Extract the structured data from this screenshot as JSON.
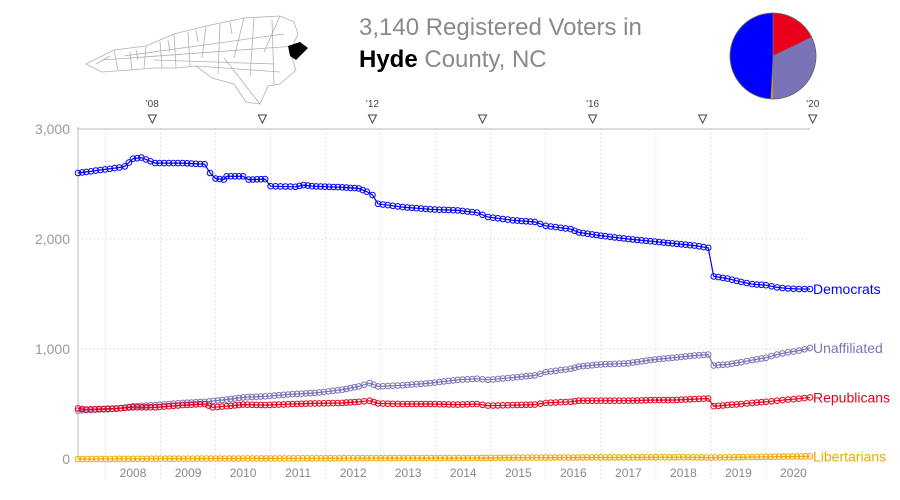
{
  "header": {
    "title_line1": "3,140 Registered Voters in",
    "county": "Hyde",
    "title_line2_rest": " County, NC"
  },
  "map": {
    "icon": "north-carolina-county-map-icon",
    "outline_color": "#b0b0b0",
    "highlight_color": "#000000"
  },
  "colors": {
    "democrats": "#0000ff",
    "unaffiliated": "#7b73b8",
    "republicans": "#e8001c",
    "libertarians": "#f0a800",
    "axis_text": "#999999",
    "grid": "#c8c8c8"
  },
  "chart_data": {
    "type": "line",
    "title": "3,140 Registered Voters in Hyde County, NC",
    "xlim": [
      2007.5,
      2020.8
    ],
    "ylim": [
      0,
      3000
    ],
    "y_ticks": [
      0,
      1000,
      2000,
      3000
    ],
    "y_tick_labels": [
      "0",
      "1,000",
      "2,000",
      "3,000"
    ],
    "x_tick_labels": [
      "2008",
      "2009",
      "2010",
      "2011",
      "2012",
      "2013",
      "2014",
      "2015",
      "2016",
      "2017",
      "2018",
      "2019",
      "2020"
    ],
    "x_tick_positions": [
      2008.5,
      2009.5,
      2010.5,
      2011.5,
      2012.5,
      2013.5,
      2014.5,
      2015.5,
      2016.5,
      2017.5,
      2018.5,
      2019.5,
      2020.5
    ],
    "election_markers": [
      {
        "x": 2008.85,
        "label": "'08"
      },
      {
        "x": 2010.85,
        "label": ""
      },
      {
        "x": 2012.85,
        "label": "'12"
      },
      {
        "x": 2014.85,
        "label": ""
      },
      {
        "x": 2016.85,
        "label": "'16"
      },
      {
        "x": 2018.85,
        "label": ""
      },
      {
        "x": 2020.85,
        "label": "'20"
      }
    ],
    "grid": true,
    "legend": "end-of-line labels",
    "series": [
      {
        "name": "Democrats",
        "color": "#0000ff",
        "points": [
          [
            2007.5,
            2600
          ],
          [
            2007.65,
            2610
          ],
          [
            2008.25,
            2650
          ],
          [
            2008.35,
            2660
          ],
          [
            2008.5,
            2730
          ],
          [
            2008.65,
            2740
          ],
          [
            2008.9,
            2690
          ],
          [
            2009.4,
            2690
          ],
          [
            2009.8,
            2680
          ],
          [
            2009.9,
            2600
          ],
          [
            2010.0,
            2550
          ],
          [
            2010.15,
            2540
          ],
          [
            2010.2,
            2570
          ],
          [
            2010.5,
            2570
          ],
          [
            2010.6,
            2540
          ],
          [
            2010.9,
            2545
          ],
          [
            2011.0,
            2480
          ],
          [
            2011.45,
            2475
          ],
          [
            2011.6,
            2490
          ],
          [
            2011.75,
            2480
          ],
          [
            2012.3,
            2470
          ],
          [
            2012.6,
            2460
          ],
          [
            2012.75,
            2430
          ],
          [
            2012.85,
            2400
          ],
          [
            2012.95,
            2320
          ],
          [
            2013.4,
            2290
          ],
          [
            2013.9,
            2270
          ],
          [
            2014.4,
            2260
          ],
          [
            2014.75,
            2240
          ],
          [
            2014.95,
            2200
          ],
          [
            2015.4,
            2170
          ],
          [
            2015.8,
            2155
          ],
          [
            2016.0,
            2120
          ],
          [
            2016.45,
            2090
          ],
          [
            2016.6,
            2060
          ],
          [
            2017.0,
            2030
          ],
          [
            2017.5,
            2000
          ],
          [
            2017.9,
            1980
          ],
          [
            2018.3,
            1960
          ],
          [
            2018.7,
            1940
          ],
          [
            2018.95,
            1920
          ],
          [
            2019.05,
            1660
          ],
          [
            2019.3,
            1640
          ],
          [
            2019.55,
            1610
          ],
          [
            2019.75,
            1590
          ],
          [
            2020.0,
            1580
          ],
          [
            2020.2,
            1560
          ],
          [
            2020.4,
            1550
          ],
          [
            2020.6,
            1545
          ],
          [
            2020.8,
            1545
          ]
        ]
      },
      {
        "name": "Unaffiliated",
        "color": "#7b73b8",
        "points": [
          [
            2007.5,
            440
          ],
          [
            2007.65,
            445
          ],
          [
            2008.2,
            455
          ],
          [
            2008.5,
            480
          ],
          [
            2008.9,
            490
          ],
          [
            2009.4,
            510
          ],
          [
            2009.8,
            520
          ],
          [
            2010.2,
            540
          ],
          [
            2010.5,
            560
          ],
          [
            2010.9,
            570
          ],
          [
            2011.4,
            590
          ],
          [
            2011.8,
            600
          ],
          [
            2012.3,
            630
          ],
          [
            2012.6,
            660
          ],
          [
            2012.8,
            690
          ],
          [
            2012.95,
            660
          ],
          [
            2013.4,
            670
          ],
          [
            2013.9,
            690
          ],
          [
            2014.4,
            720
          ],
          [
            2014.75,
            730
          ],
          [
            2014.95,
            720
          ],
          [
            2015.4,
            740
          ],
          [
            2015.8,
            760
          ],
          [
            2016.0,
            790
          ],
          [
            2016.45,
            820
          ],
          [
            2016.6,
            840
          ],
          [
            2017.0,
            860
          ],
          [
            2017.5,
            870
          ],
          [
            2017.9,
            900
          ],
          [
            2018.3,
            920
          ],
          [
            2018.7,
            940
          ],
          [
            2018.95,
            950
          ],
          [
            2019.05,
            850
          ],
          [
            2019.3,
            860
          ],
          [
            2019.55,
            880
          ],
          [
            2019.75,
            900
          ],
          [
            2020.0,
            920
          ],
          [
            2020.2,
            950
          ],
          [
            2020.4,
            970
          ],
          [
            2020.6,
            985
          ],
          [
            2020.8,
            1010
          ]
        ]
      },
      {
        "name": "Republicans",
        "color": "#e8001c",
        "points": [
          [
            2007.5,
            460
          ],
          [
            2007.65,
            450
          ],
          [
            2008.2,
            460
          ],
          [
            2008.5,
            470
          ],
          [
            2008.9,
            470
          ],
          [
            2009.4,
            490
          ],
          [
            2009.8,
            500
          ],
          [
            2009.95,
            470
          ],
          [
            2010.2,
            480
          ],
          [
            2010.5,
            495
          ],
          [
            2010.9,
            490
          ],
          [
            2011.4,
            500
          ],
          [
            2011.8,
            505
          ],
          [
            2012.3,
            510
          ],
          [
            2012.6,
            520
          ],
          [
            2012.8,
            530
          ],
          [
            2012.95,
            505
          ],
          [
            2013.4,
            500
          ],
          [
            2013.9,
            500
          ],
          [
            2014.4,
            495
          ],
          [
            2014.75,
            500
          ],
          [
            2014.95,
            485
          ],
          [
            2015.4,
            490
          ],
          [
            2015.8,
            495
          ],
          [
            2016.0,
            510
          ],
          [
            2016.45,
            520
          ],
          [
            2016.6,
            530
          ],
          [
            2017.0,
            530
          ],
          [
            2017.5,
            530
          ],
          [
            2017.9,
            535
          ],
          [
            2018.3,
            535
          ],
          [
            2018.7,
            545
          ],
          [
            2018.95,
            550
          ],
          [
            2019.05,
            480
          ],
          [
            2019.3,
            490
          ],
          [
            2019.55,
            500
          ],
          [
            2019.75,
            510
          ],
          [
            2020.0,
            520
          ],
          [
            2020.2,
            530
          ],
          [
            2020.4,
            540
          ],
          [
            2020.6,
            548
          ],
          [
            2020.8,
            560
          ]
        ]
      },
      {
        "name": "Libertarians",
        "color": "#f0a800",
        "points": [
          [
            2007.5,
            0
          ],
          [
            2008.5,
            2
          ],
          [
            2009.5,
            3
          ],
          [
            2010.5,
            5
          ],
          [
            2011.5,
            6
          ],
          [
            2012.5,
            7
          ],
          [
            2013.5,
            8
          ],
          [
            2014.5,
            8
          ],
          [
            2015.0,
            10
          ],
          [
            2015.5,
            12
          ],
          [
            2016.5,
            14
          ],
          [
            2017.5,
            15
          ],
          [
            2018.5,
            16
          ],
          [
            2019.0,
            14
          ],
          [
            2019.5,
            16
          ],
          [
            2020.0,
            20
          ],
          [
            2020.4,
            22
          ],
          [
            2020.8,
            25
          ]
        ]
      }
    ]
  },
  "pie": {
    "type": "pie",
    "slices": [
      {
        "name": "Democrats",
        "value": 1545,
        "color": "#0000ff"
      },
      {
        "name": "Republicans",
        "value": 560,
        "color": "#e8001c"
      },
      {
        "name": "Unaffiliated",
        "value": 1010,
        "color": "#7b73b8"
      },
      {
        "name": "Libertarians",
        "value": 25,
        "color": "#f0a800"
      }
    ]
  }
}
